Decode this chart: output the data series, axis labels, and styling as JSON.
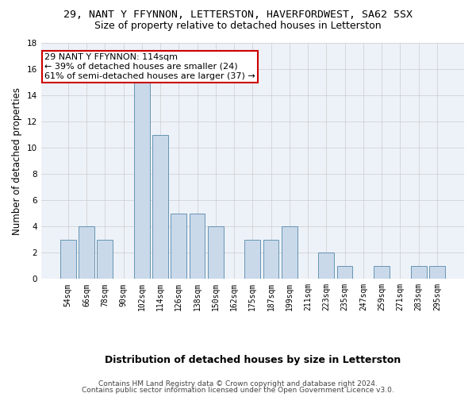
{
  "title_line1": "29, NANT Y FFYNNON, LETTERSTON, HAVERFORDWEST, SA62 5SX",
  "title_line2": "Size of property relative to detached houses in Letterston",
  "xlabel": "Distribution of detached houses by size in Letterston",
  "ylabel": "Number of detached properties",
  "categories": [
    "54sqm",
    "66sqm",
    "78sqm",
    "90sqm",
    "102sqm",
    "114sqm",
    "126sqm",
    "138sqm",
    "150sqm",
    "162sqm",
    "175sqm",
    "187sqm",
    "199sqm",
    "211sqm",
    "223sqm",
    "235sqm",
    "247sqm",
    "259sqm",
    "271sqm",
    "283sqm",
    "295sqm"
  ],
  "values": [
    3,
    4,
    3,
    0,
    15,
    11,
    5,
    5,
    4,
    0,
    3,
    3,
    4,
    0,
    2,
    1,
    0,
    1,
    0,
    1,
    1
  ],
  "bar_color": "#c9d9ea",
  "bar_edge_color": "#5588aa",
  "annotation_box_text": "29 NANT Y FFYNNON: 114sqm\n← 39% of detached houses are smaller (24)\n61% of semi-detached houses are larger (37) →",
  "annotation_box_color": "white",
  "annotation_box_edge_color": "#cc0000",
  "ylim": [
    0,
    18
  ],
  "yticks": [
    0,
    2,
    4,
    6,
    8,
    10,
    12,
    14,
    16,
    18
  ],
  "footer_line1": "Contains HM Land Registry data © Crown copyright and database right 2024.",
  "footer_line2": "Contains public sector information licensed under the Open Government Licence v3.0.",
  "bg_color": "#edf2f8",
  "grid_color": "#cccccc",
  "title_fontsize": 9.5,
  "subtitle_fontsize": 9,
  "ylabel_fontsize": 8.5,
  "xlabel_fontsize": 9,
  "tick_fontsize": 7,
  "footer_fontsize": 6.5,
  "ann_fontsize": 8
}
